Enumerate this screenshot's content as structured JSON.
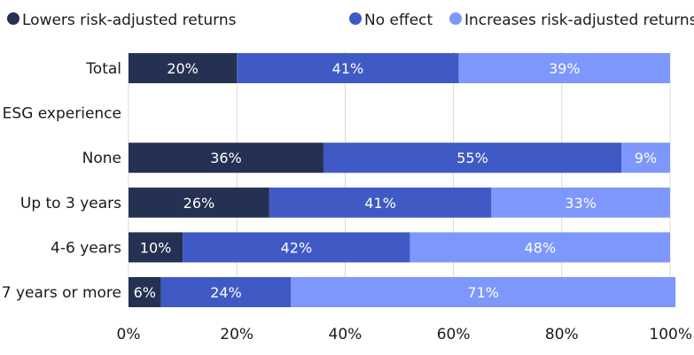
{
  "chart_data": {
    "type": "bar",
    "orientation": "horizontal",
    "stacked": true,
    "categories": [
      "Total",
      "ESG experience",
      "None",
      "Up to 3 years",
      "4-6 years",
      "7 years or more"
    ],
    "series": [
      {
        "name": "Lowers risk-adjusted returns",
        "values": [
          20,
          null,
          36,
          26,
          10,
          6
        ],
        "color": "#243152"
      },
      {
        "name": "No effect",
        "values": [
          41,
          null,
          55,
          41,
          42,
          24
        ],
        "color": "#3f5ac4"
      },
      {
        "name": "Increases risk-adjusted returns",
        "values": [
          39,
          null,
          9,
          33,
          48,
          71
        ],
        "color": "#7d97fc"
      }
    ],
    "xlim": [
      0,
      100
    ],
    "x_ticks": [
      "0%",
      "20%",
      "40%",
      "60%",
      "80%",
      "100%"
    ],
    "x_tick_values": [
      0,
      20,
      40,
      60,
      80,
      100
    ],
    "value_suffix": "%",
    "grid": "vertical",
    "legend_position": "top"
  }
}
